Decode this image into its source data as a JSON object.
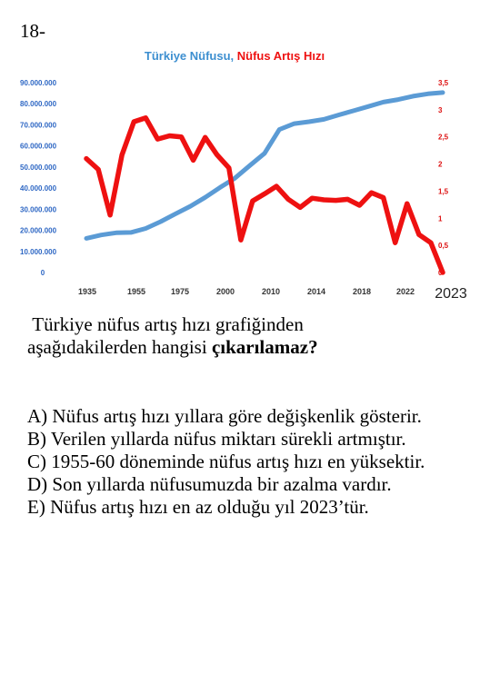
{
  "question_number": "18-",
  "chart_data": {
    "type": "line",
    "title_part1": "Türkiye Nüfusu",
    "title_sep": ", ",
    "title_part2": "Nüfus Artış Hızı",
    "x_tick_labels": [
      "1935",
      "1955",
      "1975",
      "2000",
      "2010",
      "2014",
      "2018",
      "2022",
      "2023"
    ],
    "y_left_ticks": [
      "0",
      "10.000.000",
      "20.000.000",
      "30.000.000",
      "40.000.000",
      "50.000.000",
      "60.000.000",
      "70.000.000",
      "80.000.000",
      "90.000.000"
    ],
    "y_right_ticks": [
      "0",
      "0,5",
      "1",
      "1,5",
      "2",
      "2,5",
      "3",
      "3,5"
    ],
    "ylim_left": [
      0,
      90000000
    ],
    "ylim_right": [
      0,
      3.5
    ],
    "series": [
      {
        "name": "Türkiye Nüfusu",
        "axis": "left",
        "color": "#5b9bd5",
        "values": [
          16200000,
          17800000,
          18800000,
          19000000,
          20900000,
          24100000,
          27800000,
          31400000,
          35600000,
          40300000,
          44700000,
          50700000,
          56500000,
          67800000,
          70600000,
          71500000,
          72600000,
          74700000,
          76700000,
          78700000,
          80800000,
          82000000,
          83600000,
          84700000,
          85300000
        ]
      },
      {
        "name": "Nüfus Artış Hızı",
        "axis": "right",
        "color": "#ee1111",
        "values": [
          2.1,
          1.9,
          1.06,
          2.17,
          2.78,
          2.85,
          2.46,
          2.52,
          2.5,
          2.07,
          2.49,
          2.17,
          1.93,
          0.6,
          1.32,
          1.45,
          1.59,
          1.35,
          1.2,
          1.37,
          1.34,
          1.33,
          1.35,
          1.24,
          1.47,
          1.38,
          0.55,
          1.27,
          0.7,
          0.55,
          0.0
        ]
      }
    ],
    "grid": false,
    "legend": "title"
  },
  "question": {
    "line1": "Türkiye nüfus artış hızı grafiğinden",
    "line2_prefix": "aşağıdakilerden hangisi ",
    "line2_bold": "çıkarılamaz?"
  },
  "options": [
    "A) Nüfus artış hızı yıllara göre değişkenlik gösterir.",
    "B) Verilen yıllarda nüfus miktarı sürekli artmıştır.",
    "C) 1955-60 döneminde nüfus artış hızı en yüksektir.",
    "D) Son yıllarda nüfusumuzda bir azalma vardır.",
    "E) Nüfus artış hızı en az olduğu yıl 2023’tür."
  ]
}
